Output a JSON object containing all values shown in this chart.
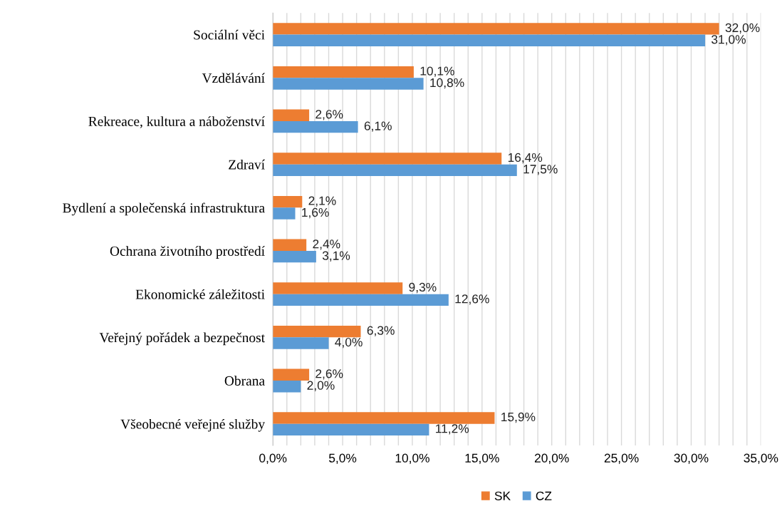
{
  "chart_data": {
    "type": "bar",
    "orientation": "horizontal",
    "categories": [
      "Sociální věci",
      "Vzdělávání",
      "Rekreace, kultura a náboženství",
      "Zdraví",
      "Bydlení a společenská infrastruktura",
      "Ochrana životního prostředí",
      "Ekonomické záležitosti",
      "Veřejný pořádek a bezpečnost",
      "Obrana",
      "Všeobecné veřejné služby"
    ],
    "series": [
      {
        "name": "SK",
        "color": "#ed7d31",
        "values": [
          32.0,
          10.1,
          2.6,
          16.4,
          2.1,
          2.4,
          9.3,
          6.3,
          2.6,
          15.9
        ],
        "value_labels": [
          "32,0%",
          "10,1%",
          "2,6%",
          "16,4%",
          "2,1%",
          "2,4%",
          "9,3%",
          "6,3%",
          "2,6%",
          "15,9%"
        ]
      },
      {
        "name": "CZ",
        "color": "#5b9bd5",
        "values": [
          31.0,
          10.8,
          6.1,
          17.5,
          1.6,
          3.1,
          12.6,
          4.0,
          2.0,
          11.2
        ],
        "value_labels": [
          "31,0%",
          "10,8%",
          "6,1%",
          "17,5%",
          "1,6%",
          "3,1%",
          "12,6%",
          "4,0%",
          "2,0%",
          "11,2%"
        ]
      }
    ],
    "xlim": [
      0,
      35
    ],
    "xticks": [
      {
        "value": 0,
        "label": "0,0%"
      },
      {
        "value": 1,
        "label": null
      },
      {
        "value": 2,
        "label": null
      },
      {
        "value": 3,
        "label": null
      },
      {
        "value": 4,
        "label": null
      },
      {
        "value": 5,
        "label": "5,0%"
      },
      {
        "value": 6,
        "label": null
      },
      {
        "value": 7,
        "label": null
      },
      {
        "value": 8,
        "label": null
      },
      {
        "value": 9,
        "label": null
      },
      {
        "value": 10,
        "label": "10,0%"
      },
      {
        "value": 11,
        "label": null
      },
      {
        "value": 12,
        "label": null
      },
      {
        "value": 13,
        "label": null
      },
      {
        "value": 14,
        "label": null
      },
      {
        "value": 15,
        "label": "15,0%"
      },
      {
        "value": 16,
        "label": null
      },
      {
        "value": 17,
        "label": null
      },
      {
        "value": 18,
        "label": null
      },
      {
        "value": 19,
        "label": null
      },
      {
        "value": 20,
        "label": "20,0%"
      },
      {
        "value": 21,
        "label": null
      },
      {
        "value": 22,
        "label": null
      },
      {
        "value": 23,
        "label": null
      },
      {
        "value": 24,
        "label": null
      },
      {
        "value": 25,
        "label": "25,0%"
      },
      {
        "value": 26,
        "label": null
      },
      {
        "value": 27,
        "label": null
      },
      {
        "value": 28,
        "label": null
      },
      {
        "value": 29,
        "label": null
      },
      {
        "value": 30,
        "label": "30,0%"
      },
      {
        "value": 31,
        "label": null
      },
      {
        "value": 32,
        "label": null
      },
      {
        "value": 33,
        "label": null
      },
      {
        "value": 34,
        "label": null
      },
      {
        "value": 35,
        "label": "35,0%"
      }
    ],
    "grid": "x",
    "legend": "bottom"
  }
}
